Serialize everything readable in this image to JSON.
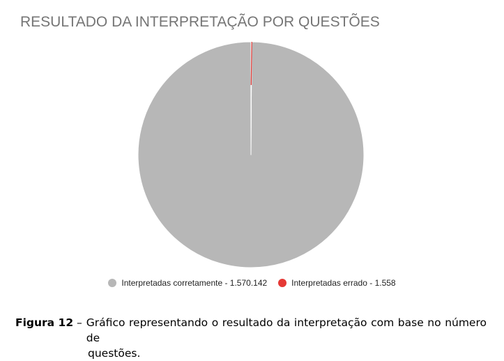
{
  "chart_data": {
    "type": "pie",
    "title": "RESULTADO DA INTERPRETAÇÃO POR QUESTÕES",
    "slices": [
      {
        "label": "Interpretadas corretamente - 1.570.142",
        "value": 1570142,
        "color": "#b7b7b7"
      },
      {
        "label": "Interpretadas errado - 1.558",
        "value": 1558,
        "color": "#e53935"
      }
    ],
    "legend_position": "bottom"
  },
  "caption": {
    "label": "Figura 12",
    "dash": "–",
    "text_line1": "Gráfico representando o resultado da interpretação com base no número de",
    "text_line2": "questões."
  }
}
